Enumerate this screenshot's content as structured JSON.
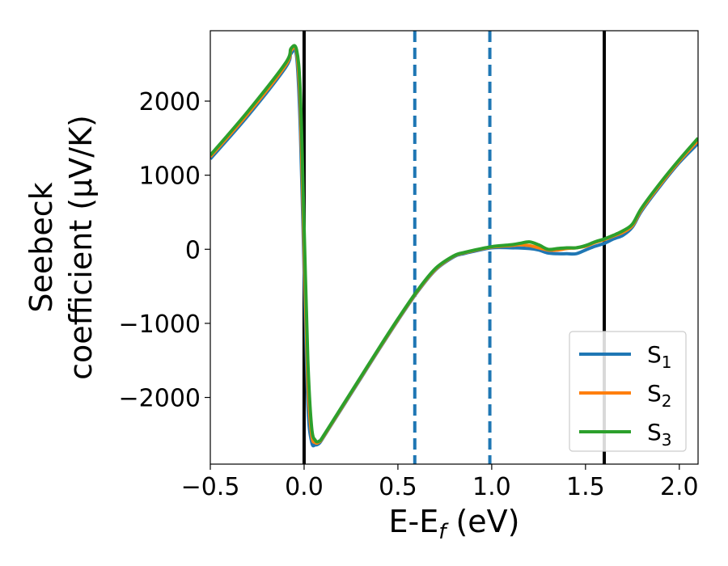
{
  "chart_data": {
    "type": "line",
    "xlabel": "E-E",
    "xlabel_sub": "f",
    "xlabel_unit": " (eV)",
    "ylabel_line1": "Seebeck",
    "ylabel_line2": "coefficient  (μV/K)",
    "xlim": [
      -0.5,
      2.1
    ],
    "ylim": [
      -2900,
      2950
    ],
    "xticks": [
      -0.5,
      0.0,
      0.5,
      1.0,
      1.5,
      2.0
    ],
    "xtick_labels": [
      "−0.5",
      "0.0",
      "0.5",
      "1.0",
      "1.5",
      "2.0"
    ],
    "yticks": [
      -2000,
      -1000,
      0,
      1000,
      2000
    ],
    "ytick_labels": [
      "−2000",
      "−1000",
      "0",
      "1000",
      "2000"
    ],
    "grid": false,
    "legend_position": "bottom-right",
    "vlines_solid": [
      0.0,
      1.6
    ],
    "vlines_dashed": [
      0.59,
      0.99
    ],
    "colors": {
      "s1": "#1f77b4",
      "s2": "#ff7f0e",
      "s3": "#2ca02c",
      "vline_solid": "#000000",
      "vline_dashed": "#1f77b4"
    },
    "series": [
      {
        "name": "S",
        "sub": "1",
        "color": "#1f77b4",
        "x": [
          -0.5,
          -0.3,
          -0.1,
          -0.07,
          -0.04,
          -0.02,
          0.0,
          0.02,
          0.04,
          0.06,
          0.08,
          0.1,
          0.2,
          0.3,
          0.4,
          0.5,
          0.6,
          0.7,
          0.8,
          0.85,
          0.9,
          1.0,
          1.1,
          1.2,
          1.25,
          1.3,
          1.35,
          1.4,
          1.45,
          1.5,
          1.55,
          1.6,
          1.65,
          1.7,
          1.75,
          1.8,
          1.9,
          2.0,
          2.1
        ],
        "y": [
          1220,
          1800,
          2450,
          2640,
          2600,
          1600,
          -300,
          -2100,
          -2600,
          -2640,
          -2620,
          -2550,
          -2150,
          -1750,
          -1350,
          -960,
          -590,
          -280,
          -100,
          -60,
          -30,
          20,
          20,
          10,
          -10,
          -50,
          -60,
          -60,
          -60,
          -10,
          40,
          80,
          140,
          190,
          300,
          520,
          860,
          1170,
          1430
        ]
      },
      {
        "name": "S",
        "sub": "2",
        "color": "#ff7f0e",
        "x": [
          -0.5,
          -0.3,
          -0.1,
          -0.07,
          -0.04,
          -0.02,
          0.0,
          0.02,
          0.04,
          0.06,
          0.08,
          0.1,
          0.2,
          0.3,
          0.4,
          0.5,
          0.6,
          0.7,
          0.8,
          0.85,
          0.9,
          1.0,
          1.1,
          1.15,
          1.2,
          1.25,
          1.3,
          1.35,
          1.4,
          1.45,
          1.5,
          1.55,
          1.6,
          1.65,
          1.7,
          1.75,
          1.8,
          1.9,
          2.0,
          2.1
        ],
        "y": [
          1250,
          1830,
          2480,
          2680,
          2660,
          1900,
          0,
          -1800,
          -2500,
          -2610,
          -2600,
          -2540,
          -2140,
          -1740,
          -1340,
          -950,
          -580,
          -270,
          -90,
          -50,
          -20,
          30,
          50,
          60,
          50,
          20,
          -10,
          -10,
          10,
          20,
          40,
          90,
          130,
          180,
          230,
          320,
          540,
          880,
          1190,
          1470
        ]
      },
      {
        "name": "S",
        "sub": "3",
        "color": "#2ca02c",
        "x": [
          -0.5,
          -0.3,
          -0.1,
          -0.07,
          -0.04,
          -0.02,
          0.0,
          0.02,
          0.04,
          0.06,
          0.08,
          0.1,
          0.2,
          0.3,
          0.4,
          0.5,
          0.6,
          0.7,
          0.8,
          0.85,
          0.9,
          1.0,
          1.1,
          1.15,
          1.2,
          1.25,
          1.3,
          1.35,
          1.4,
          1.45,
          1.5,
          1.55,
          1.6,
          1.65,
          1.7,
          1.75,
          1.8,
          1.9,
          2.0,
          2.1
        ],
        "y": [
          1270,
          1860,
          2510,
          2710,
          2690,
          2100,
          300,
          -1500,
          -2400,
          -2580,
          -2590,
          -2530,
          -2130,
          -1730,
          -1330,
          -940,
          -570,
          -260,
          -85,
          -45,
          -15,
          35,
          60,
          80,
          100,
          60,
          0,
          10,
          20,
          20,
          50,
          100,
          140,
          190,
          250,
          340,
          560,
          900,
          1210,
          1500
        ]
      }
    ]
  }
}
